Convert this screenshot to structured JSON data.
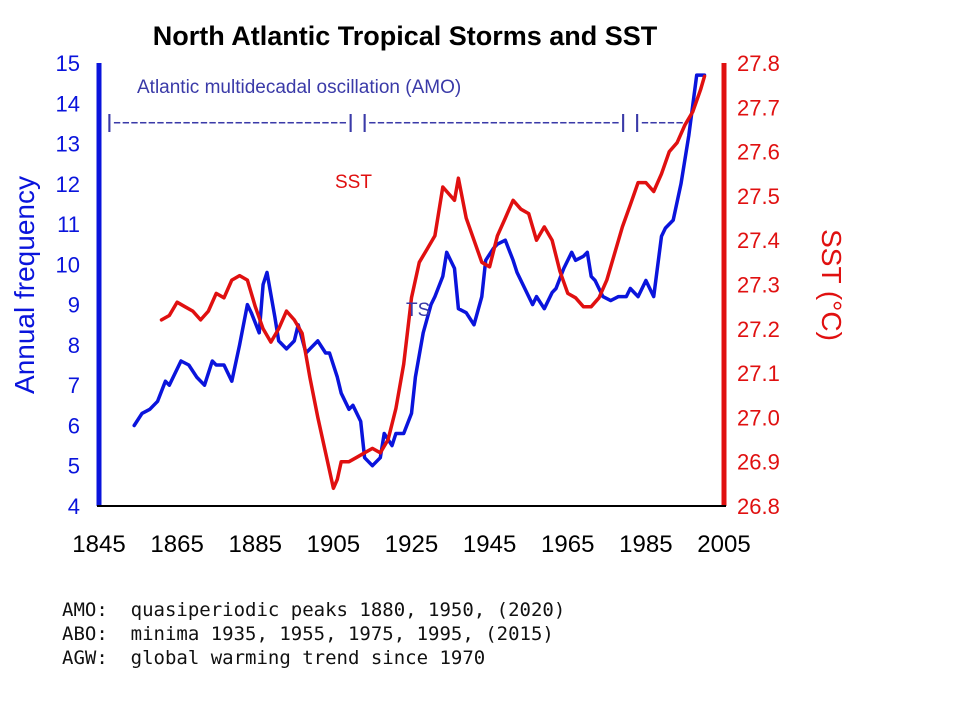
{
  "chart_data": {
    "type": "line",
    "title": "North Atlantic Tropical Storms and SST",
    "x_ticks": [
      "1845",
      "1865",
      "1885",
      "1905",
      "1925",
      "1945",
      "1965",
      "1985",
      "2005"
    ],
    "xlim": [
      1845,
      2005
    ],
    "y_left": {
      "label": "Annual frequency",
      "ylim": [
        4,
        15
      ],
      "ticks": [
        "4",
        "5",
        "6",
        "7",
        "8",
        "9",
        "10",
        "11",
        "12",
        "13",
        "14",
        "15"
      ],
      "color": "#0a14dc"
    },
    "y_right": {
      "label": "SST (°C)",
      "ylim": [
        26.8,
        27.8
      ],
      "ticks": [
        "26.8",
        "26.9",
        "27.0",
        "27.1",
        "27.2",
        "27.3",
        "27.4",
        "27.5",
        "27.6",
        "27.7",
        "27.8"
      ],
      "color": "#e01010"
    },
    "annotations": {
      "amo_label": "Atlantic multidecadal oscillation (AMO)",
      "amo_bar": "|---------------------------| |-----------------------------| |-----",
      "sst_label": "SST",
      "ts_label": "TS"
    },
    "grid": false,
    "series": [
      {
        "name": "TS",
        "axis": "left",
        "color": "#0a14dc",
        "x": [
          1854,
          1856,
          1858,
          1860,
          1862,
          1863,
          1864,
          1866,
          1868,
          1870,
          1872,
          1874,
          1875,
          1877,
          1879,
          1881,
          1883,
          1884,
          1886,
          1887,
          1888,
          1890,
          1891,
          1893,
          1895,
          1896,
          1898,
          1899,
          1901,
          1903,
          1904,
          1906,
          1907,
          1909,
          1910,
          1912,
          1913,
          1915,
          1917,
          1918,
          1920,
          1921,
          1923,
          1925,
          1926,
          1928,
          1930,
          1931,
          1933,
          1934,
          1936,
          1937,
          1939,
          1941,
          1943,
          1944,
          1946,
          1947,
          1949,
          1951,
          1952,
          1954,
          1956,
          1957,
          1959,
          1961,
          1962,
          1964,
          1966,
          1967,
          1969,
          1970,
          1971,
          1972,
          1974,
          1976,
          1978,
          1980,
          1981,
          1983,
          1985,
          1987,
          1989,
          1990,
          1992,
          1994,
          1996,
          1998,
          2000
        ],
        "values": [
          6.0,
          6.3,
          6.4,
          6.6,
          7.1,
          7.0,
          7.2,
          7.6,
          7.5,
          7.2,
          7.0,
          7.6,
          7.5,
          7.5,
          7.1,
          8.0,
          9.0,
          8.8,
          8.3,
          9.5,
          9.8,
          8.7,
          8.1,
          7.9,
          8.1,
          8.5,
          7.8,
          7.9,
          8.1,
          7.8,
          7.8,
          7.2,
          6.8,
          6.4,
          6.5,
          6.1,
          5.2,
          5.0,
          5.2,
          5.8,
          5.5,
          5.8,
          5.8,
          6.3,
          7.2,
          8.3,
          9.0,
          9.2,
          9.7,
          10.3,
          9.9,
          8.9,
          8.8,
          8.5,
          9.2,
          10.1,
          10.4,
          10.5,
          10.6,
          10.1,
          9.8,
          9.4,
          9.0,
          9.2,
          8.9,
          9.3,
          9.4,
          9.9,
          10.3,
          10.1,
          10.2,
          10.3,
          9.7,
          9.6,
          9.2,
          9.1,
          9.2,
          9.2,
          9.4,
          9.2,
          9.6,
          9.2,
          10.7,
          10.9,
          11.1,
          12.0,
          13.2,
          14.7,
          14.7
        ]
      },
      {
        "name": "SST",
        "axis": "right",
        "color": "#e01010",
        "x": [
          1861,
          1863,
          1865,
          1867,
          1869,
          1871,
          1873,
          1875,
          1877,
          1879,
          1881,
          1883,
          1885,
          1887,
          1889,
          1891,
          1893,
          1895,
          1897,
          1899,
          1901,
          1903,
          1905,
          1906,
          1907,
          1909,
          1911,
          1913,
          1915,
          1917,
          1919,
          1921,
          1923,
          1925,
          1927,
          1929,
          1931,
          1933,
          1935,
          1936,
          1937,
          1939,
          1941,
          1943,
          1945,
          1947,
          1949,
          1951,
          1953,
          1955,
          1957,
          1959,
          1961,
          1963,
          1965,
          1967,
          1969,
          1971,
          1973,
          1975,
          1977,
          1979,
          1981,
          1983,
          1985,
          1987,
          1989,
          1991,
          1993,
          1995,
          1997,
          1999,
          2000
        ],
        "values": [
          27.22,
          27.23,
          27.26,
          27.25,
          27.24,
          27.22,
          27.24,
          27.28,
          27.27,
          27.31,
          27.32,
          27.31,
          27.25,
          27.2,
          27.17,
          27.2,
          27.24,
          27.22,
          27.19,
          27.09,
          27.0,
          26.92,
          26.84,
          26.86,
          26.9,
          26.9,
          26.91,
          26.92,
          26.93,
          26.92,
          26.95,
          27.02,
          27.12,
          27.27,
          27.35,
          27.38,
          27.41,
          27.52,
          27.5,
          27.49,
          27.54,
          27.45,
          27.4,
          27.35,
          27.34,
          27.41,
          27.45,
          27.49,
          27.47,
          27.46,
          27.4,
          27.43,
          27.4,
          27.33,
          27.28,
          27.27,
          27.25,
          27.25,
          27.27,
          27.31,
          27.37,
          27.43,
          27.48,
          27.53,
          27.53,
          27.51,
          27.55,
          27.6,
          27.62,
          27.66,
          27.69,
          27.74,
          27.77
        ]
      }
    ]
  },
  "notes": [
    "AMO:  quasiperiodic peaks 1880, 1950, (2020)",
    "ABO:  minima 1935, 1955, 1975, 1995, (2015)",
    "AGW:  global warming trend since 1970"
  ]
}
